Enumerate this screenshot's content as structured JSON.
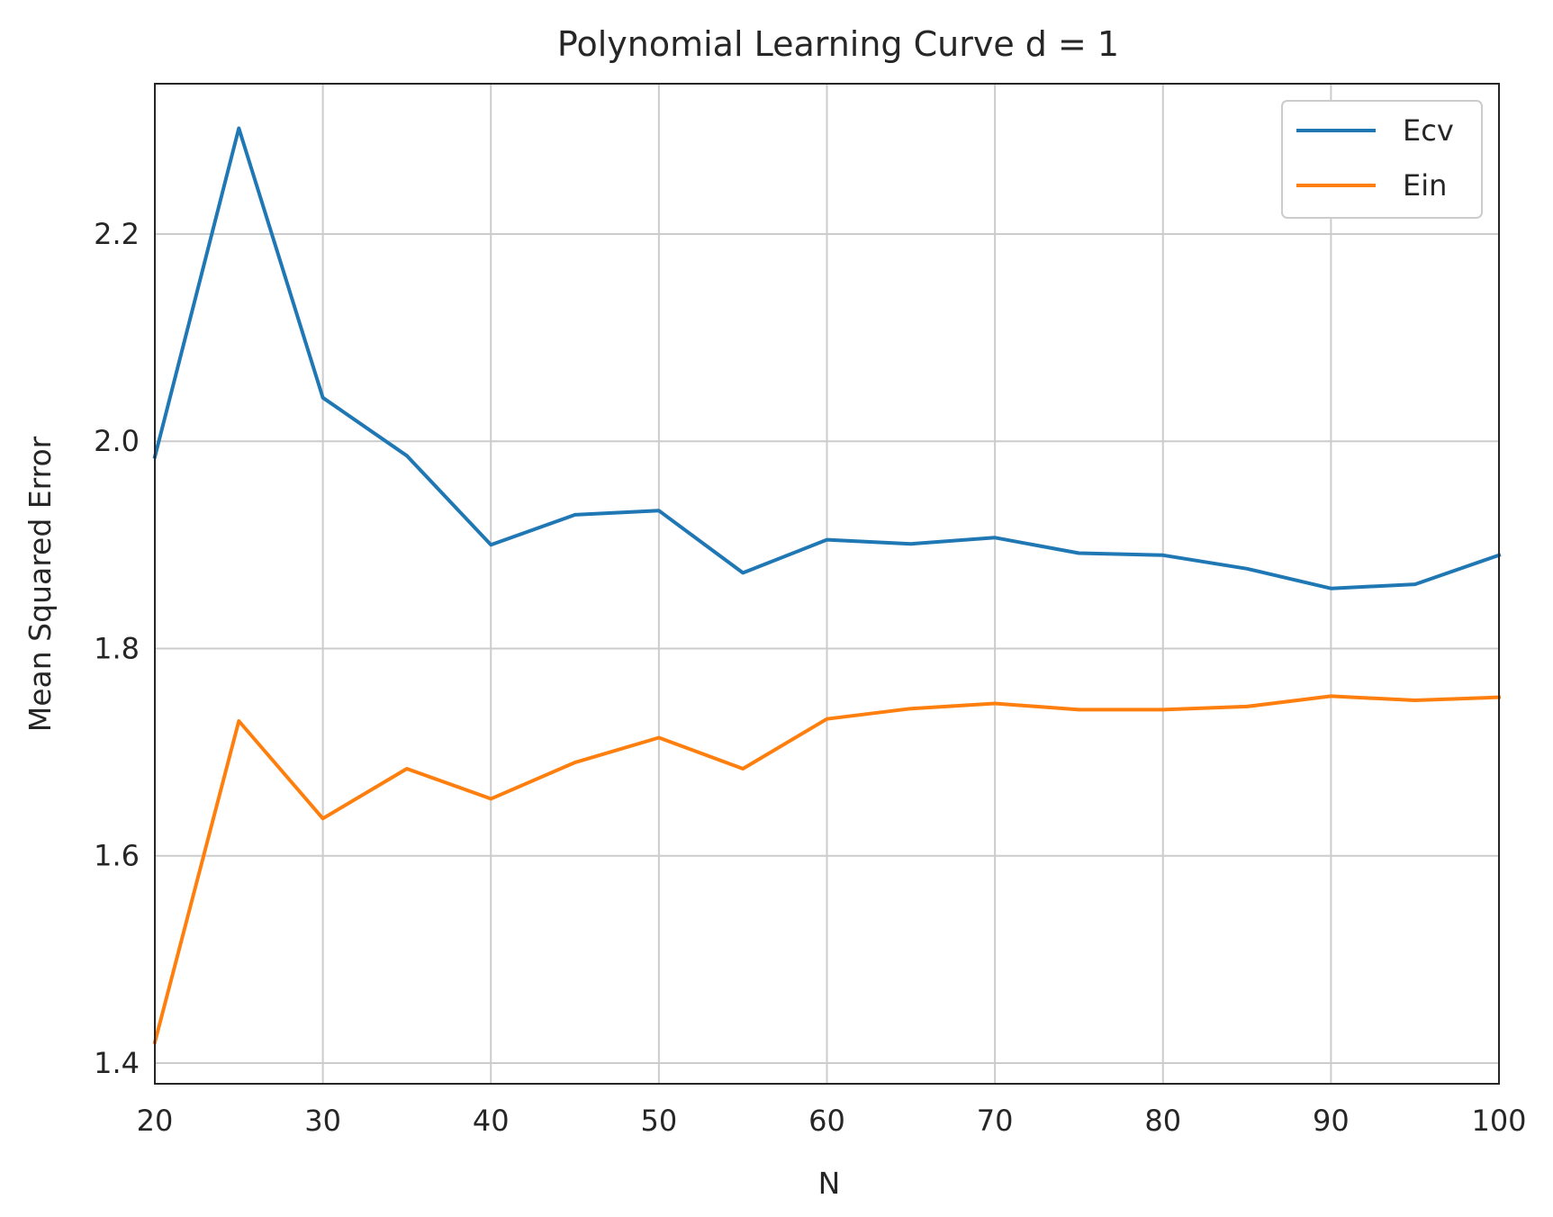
{
  "chart_data": {
    "type": "line",
    "title": "Polynomial Learning Curve d = 1",
    "xlabel": "N",
    "ylabel": "Mean Squared Error",
    "xlim": [
      20,
      100
    ],
    "ylim": [
      1.38,
      2.345
    ],
    "xticks": [
      20,
      30,
      40,
      50,
      60,
      70,
      80,
      90,
      100
    ],
    "xtick_labels": [
      "20",
      "30",
      "40",
      "50",
      "60",
      "70",
      "80",
      "90",
      "100"
    ],
    "yticks": [
      1.4,
      1.6,
      1.8,
      2.0,
      2.2
    ],
    "ytick_labels": [
      "1.4",
      "1.6",
      "1.8",
      "2.0",
      "2.2"
    ],
    "grid": true,
    "legend_position": "top-right",
    "x": [
      20,
      25,
      30,
      35,
      40,
      45,
      50,
      55,
      60,
      65,
      70,
      75,
      80,
      85,
      90,
      95,
      100
    ],
    "series": [
      {
        "name": "Ecv",
        "color": "#1f77b4",
        "values": [
          1.985,
          2.302,
          2.042,
          1.986,
          1.9,
          1.929,
          1.933,
          1.873,
          1.905,
          1.901,
          1.907,
          1.892,
          1.89,
          1.877,
          1.858,
          1.862,
          1.89
        ]
      },
      {
        "name": "Ein",
        "color": "#ff7f0e",
        "values": [
          1.42,
          1.73,
          1.636,
          1.684,
          1.655,
          1.69,
          1.714,
          1.684,
          1.732,
          1.742,
          1.747,
          1.741,
          1.741,
          1.744,
          1.754,
          1.75,
          1.753
        ]
      }
    ]
  }
}
